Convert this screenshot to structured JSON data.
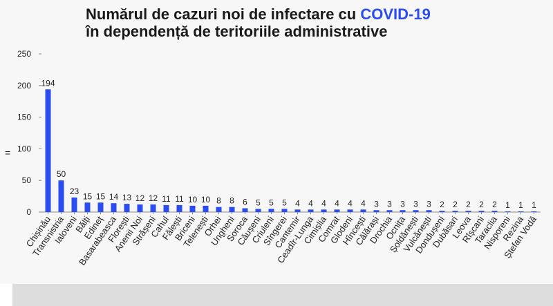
{
  "title": {
    "line1_prefix": "Numărul de cazuri noi de infectare cu ",
    "line1_accent": "COVID-19",
    "line2": "în dependență de teritoriile administrative"
  },
  "colors": {
    "bar": "#2b4cf0",
    "accent": "#2b4cf0",
    "frame": "#f7f7f7",
    "axis": "#888888"
  },
  "chart_data": {
    "type": "bar",
    "title": "Numărul de cazuri noi de infectare cu COVID-19 în dependență de teritoriile administrative",
    "xlabel": "",
    "ylabel": "",
    "ylim": [
      0,
      250
    ],
    "yticks": [
      0,
      50,
      100,
      150,
      200,
      250
    ],
    "grid": false,
    "legend": "none",
    "categories": [
      "Chișinău",
      "Transnistria",
      "Ialoveni",
      "Bălți",
      "Edineț",
      "Basarabeasca",
      "Florești",
      "Anenii Noi",
      "Strășeni",
      "Cahul",
      "Fălești",
      "Briceni",
      "Telenești",
      "Orhei",
      "Ungheni",
      "Soroca",
      "Căușeni",
      "Criuleni",
      "Sîngerei",
      "Cantemir",
      "Ceadîr-Lunga",
      "Cimișlia",
      "Comrat",
      "Glodeni",
      "Hîncești",
      "Călărași",
      "Drochia",
      "Ocnița",
      "Șoldănești",
      "Vulcănești",
      "Dondușeni",
      "Dubăsari",
      "Leova",
      "Rîșcani",
      "Taraclia",
      "Nisporeni",
      "Rezina",
      "Ștefan Vodă"
    ],
    "values": [
      194,
      50,
      23,
      15,
      15,
      14,
      13,
      12,
      12,
      11,
      11,
      10,
      10,
      8,
      8,
      6,
      5,
      5,
      5,
      4,
      4,
      4,
      4,
      4,
      4,
      3,
      3,
      3,
      3,
      3,
      2,
      2,
      2,
      2,
      2,
      1,
      1,
      1
    ]
  }
}
